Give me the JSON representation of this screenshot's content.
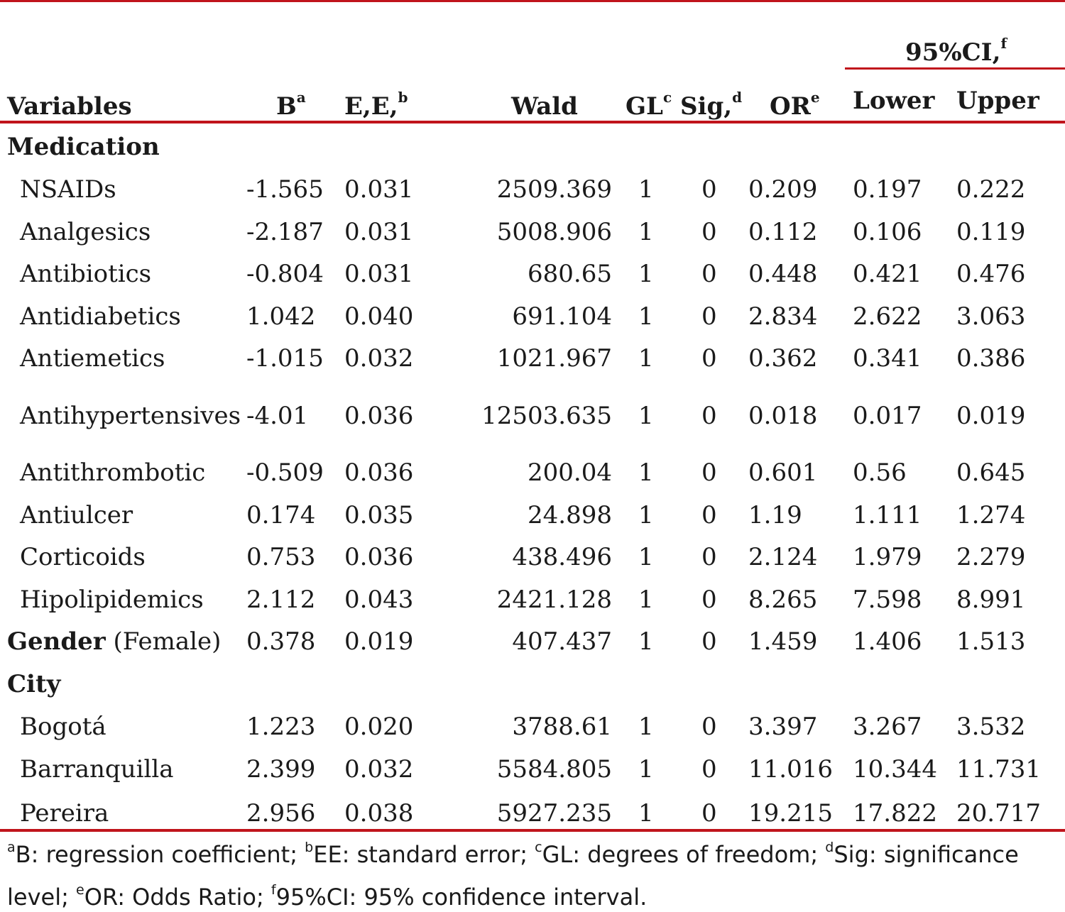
{
  "colors": {
    "rule": "#c0141c",
    "text": "#1a1a1a"
  },
  "header": {
    "ci_group": "95%CI,",
    "ci_sup": "f",
    "variables": "Variables",
    "b": "B",
    "b_sup": "a",
    "ee": "E,E,",
    "ee_sup": "b",
    "wald": "Wald",
    "gl": "GL",
    "gl_sup": "c",
    "sig": "Sig,",
    "sig_sup": "d",
    "or": "OR",
    "or_sup": "e",
    "lower": "Lower",
    "upper": "Upper"
  },
  "sections": {
    "medication": "Medication",
    "gender": "Gender",
    "gender_suffix": "(Female)",
    "city": "City"
  },
  "rows": [
    {
      "label": "NSAIDs",
      "b": "-1.565",
      "ee": "0.031",
      "wald": "2509.369",
      "gl": "1",
      "sig": "0",
      "or": "0.209",
      "lower": "0.197",
      "upper": "0.222"
    },
    {
      "label": "Analgesics",
      "b": "-2.187",
      "ee": "0.031",
      "wald": "5008.906",
      "gl": "1",
      "sig": "0",
      "or": "0.112",
      "lower": "0.106",
      "upper": "0.119"
    },
    {
      "label": "Antibiotics",
      "b": "-0.804",
      "ee": "0.031",
      "wald": "680.65",
      "gl": "1",
      "sig": "0",
      "or": "0.448",
      "lower": "0.421",
      "upper": "0.476"
    },
    {
      "label": "Antidiabetics",
      "b": "1.042",
      "ee": "0.040",
      "wald": "691.104",
      "gl": "1",
      "sig": "0",
      "or": "2.834",
      "lower": "2.622",
      "upper": "3.063"
    },
    {
      "label": "Antiemetics",
      "b": "-1.015",
      "ee": "0.032",
      "wald": "1021.967",
      "gl": "1",
      "sig": "0",
      "or": "0.362",
      "lower": "0.341",
      "upper": "0.386"
    },
    {
      "label": "Antihypertensives",
      "b": "-4.01",
      "ee": "0.036",
      "wald": "12503.635",
      "gl": "1",
      "sig": "0",
      "or": "0.018",
      "lower": "0.017",
      "upper": "0.019"
    },
    {
      "label": "Antithrombotic",
      "b": "-0.509",
      "ee": "0.036",
      "wald": "200.04",
      "gl": "1",
      "sig": "0",
      "or": "0.601",
      "lower": "0.56",
      "upper": "0.645"
    },
    {
      "label": "Antiulcer",
      "b": "0.174",
      "ee": "0.035",
      "wald": "24.898",
      "gl": "1",
      "sig": "0",
      "or": "1.19",
      "lower": "1.111",
      "upper": "1.274"
    },
    {
      "label": "Corticoids",
      "b": "0.753",
      "ee": "0.036",
      "wald": "438.496",
      "gl": "1",
      "sig": "0",
      "or": "2.124",
      "lower": "1.979",
      "upper": "2.279"
    },
    {
      "label": "Hipolipidemics",
      "b": "2.112",
      "ee": "0.043",
      "wald": "2421.128",
      "gl": "1",
      "sig": "0",
      "or": "8.265",
      "lower": "7.598",
      "upper": "8.991"
    },
    {
      "label": "",
      "b": "0.378",
      "ee": "0.019",
      "wald": "407.437",
      "gl": "1",
      "sig": "0",
      "or": "1.459",
      "lower": "1.406",
      "upper": "1.513"
    },
    {
      "label": "Bogotá",
      "b": "1.223",
      "ee": "0.020",
      "wald": "3788.61",
      "gl": "1",
      "sig": "0",
      "or": "3.397",
      "lower": "3.267",
      "upper": "3.532"
    },
    {
      "label": "Barranquilla",
      "b": "2.399",
      "ee": "0.032",
      "wald": "5584.805",
      "gl": "1",
      "sig": "0",
      "or": "11.016",
      "lower": "10.344",
      "upper": "11.731"
    },
    {
      "label": "Pereira",
      "b": "2.956",
      "ee": "0.038",
      "wald": "5927.235",
      "gl": "1",
      "sig": "0",
      "or": "19.215",
      "lower": "17.822",
      "upper": "20.717"
    }
  ],
  "footnote": {
    "a_sup": "a",
    "a": "B: regression coefficient; ",
    "b_sup": "b",
    "b": "EE: standard error; ",
    "c_sup": "c",
    "c": "GL: degrees of freedom; ",
    "d_sup": "d",
    "d": "Sig: significance",
    "d2": "level; ",
    "e_sup": "e",
    "e": "OR: Odds Ratio; ",
    "f_sup": "f",
    "f": "95%CI: 95% confidence interval."
  }
}
